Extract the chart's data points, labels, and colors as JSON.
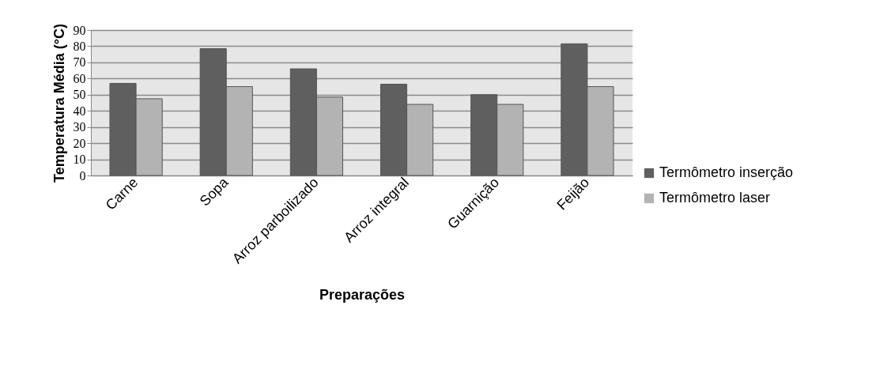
{
  "chart_data": {
    "type": "bar",
    "xlabel": "Preparações",
    "ylabel": "Temperatura Média (°C)",
    "categories": [
      "Carne",
      "Sopa",
      "Arroz parboilizado",
      "Arroz integral",
      "Guarnição",
      "Feijão"
    ],
    "series": [
      {
        "name": "Termômetro inserção",
        "color": "#5f5f5f",
        "values": [
          57,
          78.5,
          66,
          56.5,
          50,
          81.5
        ]
      },
      {
        "name": "Termômetro laser",
        "color": "#b3b3b3",
        "values": [
          47.5,
          55,
          48.5,
          44,
          44,
          55
        ]
      }
    ],
    "ylim": [
      0,
      90
    ],
    "yticks": [
      0,
      10,
      20,
      30,
      40,
      50,
      60,
      70,
      80,
      90
    ],
    "grid": "y",
    "legend": "right"
  }
}
